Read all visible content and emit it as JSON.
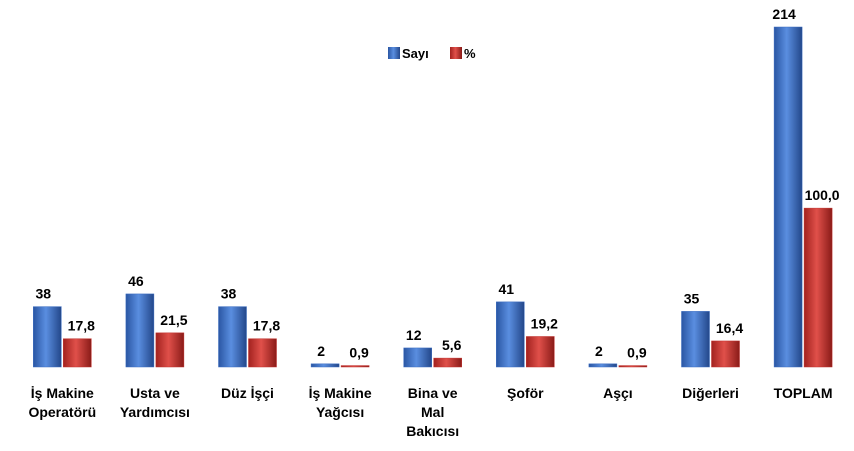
{
  "chart_data": {
    "type": "bar",
    "categories": [
      "İş Makine Operatörü",
      "Usta ve Yardımcısı",
      "Düz İşçi",
      "İş Makine Yağcısı",
      "Bina ve Mal Bakıcısı",
      "Şoför",
      "Aşçı",
      "Diğerleri",
      "TOPLAM"
    ],
    "series": [
      {
        "name": "Sayı",
        "color": "#3b6cc0",
        "values": [
          38,
          46,
          38,
          2,
          12,
          41,
          2,
          35,
          214
        ]
      },
      {
        "name": "%",
        "color": "#c0302c",
        "values": [
          17.8,
          21.5,
          17.8,
          0.9,
          5.6,
          19.2,
          0.9,
          16.4,
          100.0
        ],
        "value_labels": [
          "17,8",
          "21,5",
          "17,8",
          "0,9",
          "5,6",
          "19,2",
          "0,9",
          "16,4",
          "100,0"
        ]
      }
    ],
    "legend": "top"
  }
}
